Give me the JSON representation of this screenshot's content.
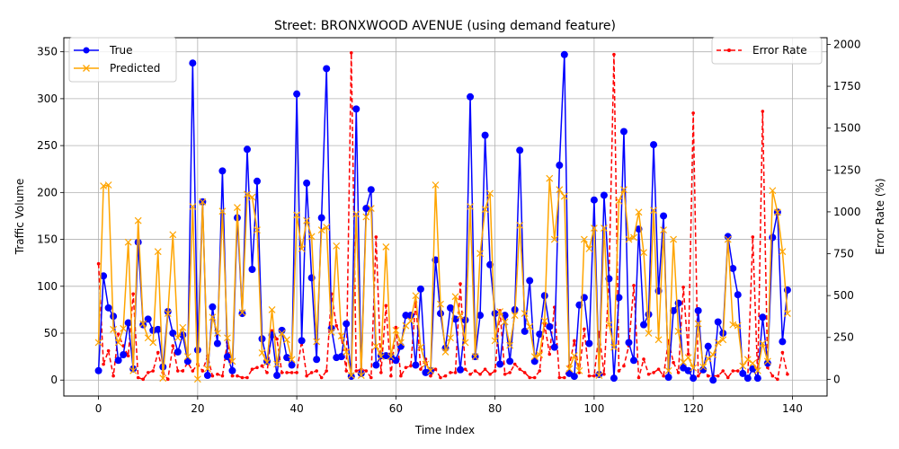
{
  "chart_data": {
    "type": "line",
    "title": "Street: BRONXWOOD AVENUE (using demand feature)",
    "xlabel": "Time Index",
    "ylabel": "Traffic Volume",
    "y2label": "Error Rate (%)",
    "xlim": [
      -7,
      147
    ],
    "ylim": [
      -17,
      365
    ],
    "y2lim": [
      -100,
      2040
    ],
    "xticks": [
      0,
      20,
      40,
      60,
      80,
      100,
      120,
      140
    ],
    "yticks": [
      0,
      50,
      100,
      150,
      200,
      250,
      300,
      350
    ],
    "y2ticks": [
      0,
      250,
      500,
      750,
      1000,
      1250,
      1500,
      1750,
      2000
    ],
    "grid": true,
    "legend_left_position": "upper left",
    "legend_right_position": "upper right",
    "x": [
      0,
      1,
      2,
      3,
      4,
      5,
      6,
      7,
      8,
      9,
      10,
      11,
      12,
      13,
      14,
      15,
      16,
      17,
      18,
      19,
      20,
      21,
      22,
      23,
      24,
      25,
      26,
      27,
      28,
      29,
      30,
      31,
      32,
      33,
      34,
      35,
      36,
      37,
      38,
      39,
      40,
      41,
      42,
      43,
      44,
      45,
      46,
      47,
      48,
      49,
      50,
      51,
      52,
      53,
      54,
      55,
      56,
      57,
      58,
      59,
      60,
      61,
      62,
      63,
      64,
      65,
      66,
      67,
      68,
      69,
      70,
      71,
      72,
      73,
      74,
      75,
      76,
      77,
      78,
      79,
      80,
      81,
      82,
      83,
      84,
      85,
      86,
      87,
      88,
      89,
      90,
      91,
      92,
      93,
      94,
      95,
      96,
      97,
      98,
      99,
      100,
      101,
      102,
      103,
      104,
      105,
      106,
      107,
      108,
      109,
      110,
      111,
      112,
      113,
      114,
      115,
      116,
      117,
      118,
      119,
      120,
      121,
      122,
      123,
      124,
      125,
      126,
      127,
      128,
      129,
      130,
      131,
      132,
      133,
      134,
      135,
      136,
      137,
      138,
      139
    ],
    "series": [
      {
        "name": "True",
        "axis": "left",
        "color": "#0000ff",
        "style": "solid",
        "marker": "circle",
        "values": [
          10,
          111,
          77,
          68,
          21,
          27,
          61,
          12,
          147,
          59,
          65,
          53,
          54,
          14,
          73,
          50,
          30,
          48,
          20,
          338,
          32,
          190,
          5,
          78,
          39,
          223,
          25,
          10,
          173,
          71,
          246,
          118,
          212,
          44,
          20,
          48,
          5,
          53,
          24,
          16,
          305,
          42,
          210,
          109,
          22,
          173,
          332,
          55,
          24,
          25,
          60,
          4,
          289,
          7,
          183,
          203,
          16,
          26,
          26,
          25,
          21,
          36,
          69,
          69,
          16,
          97,
          8,
          10,
          128,
          71,
          34,
          77,
          65,
          11,
          64,
          302,
          25,
          69,
          261,
          123,
          71,
          17,
          69,
          20,
          75,
          245,
          52,
          106,
          20,
          49,
          90,
          57,
          35,
          229,
          347,
          7,
          4,
          80,
          88,
          39,
          192,
          6,
          197,
          108,
          2,
          88,
          265,
          40,
          21,
          161,
          59,
          70,
          251,
          95,
          175,
          3,
          74,
          82,
          13,
          10,
          2,
          74,
          11,
          36,
          0,
          62,
          50,
          153,
          119,
          91,
          7,
          2,
          12,
          2,
          67,
          18,
          152,
          179,
          41,
          96
        ]
      },
      {
        "name": "Predicted",
        "axis": "left",
        "color": "#ffa500",
        "style": "solid",
        "marker": "x",
        "values": [
          40,
          207,
          208,
          54,
          40,
          55,
          147,
          10,
          170,
          60,
          45,
          40,
          137,
          2,
          71,
          155,
          45,
          56,
          25,
          185,
          1,
          190,
          12,
          67,
          50,
          180,
          45,
          20,
          184,
          72,
          198,
          195,
          160,
          29,
          19,
          75,
          17,
          50,
          43,
          22,
          176,
          140,
          170,
          153,
          41,
          160,
          163,
          51,
          143,
          47,
          30,
          5,
          177,
          5,
          174,
          183,
          36,
          25,
          142,
          25,
          53,
          40,
          58,
          63,
          90,
          35,
          17,
          10,
          208,
          81,
          30,
          45,
          89,
          69,
          40,
          185,
          25,
          135,
          182,
          199,
          42,
          73,
          62,
          37,
          69,
          165,
          71,
          57,
          25,
          27,
          63,
          215,
          150,
          203,
          196,
          12,
          26,
          10,
          150,
          140,
          162,
          5,
          162,
          59,
          35,
          191,
          203,
          150,
          152,
          179,
          136,
          50,
          181,
          43,
          160,
          10,
          150,
          52,
          19,
          24,
          13,
          60,
          14,
          23,
          27,
          40,
          43,
          150,
          59,
          58,
          15,
          22,
          18,
          10,
          39,
          20,
          202,
          179,
          137,
          71
        ]
      },
      {
        "name": "Error Rate",
        "axis": "right",
        "color": "#ff0000",
        "style": "dashed",
        "marker": "dot",
        "values": [
          690,
          90,
          170,
          20,
          270,
          200,
          140,
          510,
          10,
          0,
          40,
          50,
          160,
          40,
          0,
          200,
          50,
          50,
          100,
          50,
          90,
          50,
          140,
          20,
          30,
          20,
          220,
          20,
          20,
          10,
          10,
          60,
          70,
          80,
          40,
          290,
          240,
          40,
          40,
          40,
          40,
          230,
          20,
          40,
          50,
          10,
          50,
          510,
          320,
          250,
          50,
          1950,
          50,
          60,
          50,
          10,
          850,
          40,
          440,
          20,
          310,
          20,
          70,
          80,
          460,
          60,
          120,
          20,
          60,
          10,
          20,
          40,
          40,
          570,
          60,
          30,
          50,
          30,
          60,
          30,
          50,
          410,
          30,
          40,
          90,
          60,
          40,
          10,
          10,
          50,
          330,
          150,
          430,
          10,
          10,
          80,
          230,
          40,
          300,
          20,
          20,
          280,
          30,
          600,
          1940,
          50,
          80,
          200,
          560,
          10,
          120,
          30,
          40,
          60,
          20,
          230,
          100,
          40,
          550,
          150,
          1590,
          20,
          60,
          20,
          20,
          20,
          50,
          10,
          50,
          50,
          40,
          10,
          850,
          10,
          1600,
          70,
          20,
          0,
          160,
          30
        ]
      }
    ]
  }
}
